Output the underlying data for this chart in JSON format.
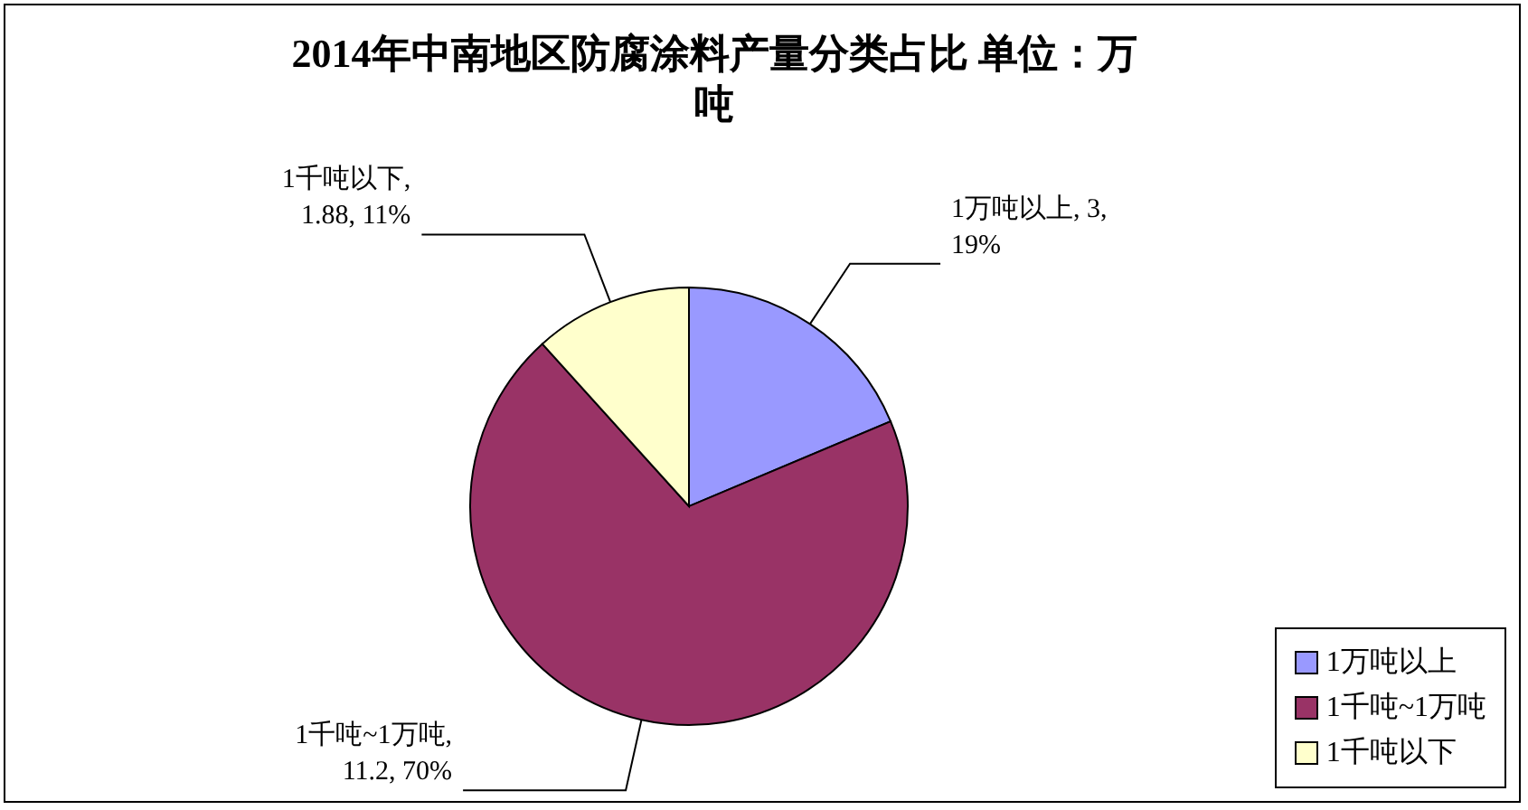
{
  "chart_data": {
    "type": "pie",
    "title": "2014年中南地区防腐涂料产量分类占比 单位：万吨",
    "categories": [
      "1万吨以上",
      "1千吨~1万吨",
      "1千吨以下"
    ],
    "values": [
      3,
      11.2,
      1.88
    ],
    "colors": [
      "#9999ff",
      "#993366",
      "#ffffcc"
    ],
    "value_labels": [
      "1万吨以上, 3,\n19%",
      "1千吨~1万吨,\n11.2, 70%",
      "1千吨以下,\n1.88, 11%"
    ],
    "legend": "bottom right"
  }
}
